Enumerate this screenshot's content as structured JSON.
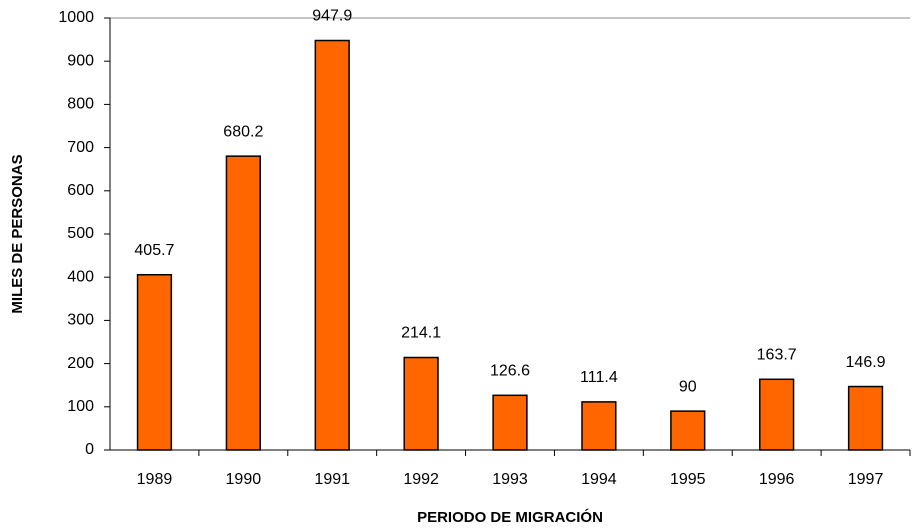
{
  "chart_data": {
    "type": "bar",
    "x_label": "PERIODO DE MIGRACIÓN",
    "y_label": "MILES DE PERSONAS",
    "categories": [
      "1989",
      "1990",
      "1991",
      "1992",
      "1993",
      "1994",
      "1995",
      "1996",
      "1997"
    ],
    "values": [
      405.7,
      680.2,
      947.9,
      214.1,
      126.6,
      111.4,
      90,
      163.7,
      146.9
    ],
    "color": "#ff6600",
    "ylim": [
      0,
      1000
    ],
    "yticks": [
      0,
      100,
      200,
      300,
      400,
      500,
      600,
      700,
      800,
      900,
      1000
    ],
    "grid": false
  }
}
